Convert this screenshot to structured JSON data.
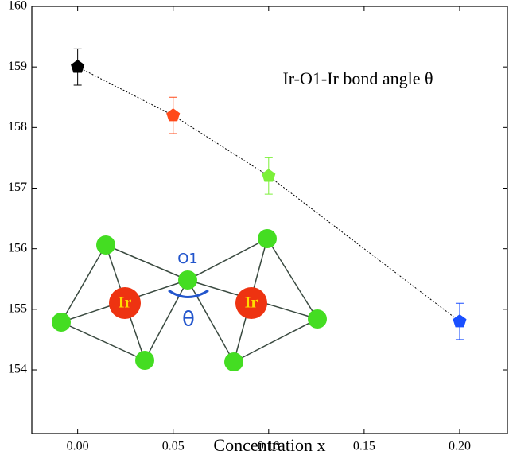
{
  "chart_data": {
    "type": "scatter",
    "annotation": "Ir-O1-Ir bond angle θ",
    "x_label": "Concentration x",
    "x": [
      0,
      0.05,
      0.1,
      0.2
    ],
    "values": [
      159,
      158.2,
      157.2,
      154.8
    ],
    "errors": [
      0.3,
      0.3,
      0.3,
      0.3
    ],
    "colors": [
      "#000000",
      "#ff4a1a",
      "#7cf03a",
      "#1a4fff"
    ],
    "xlim": [
      -0.024,
      0.225
    ],
    "xticks": [
      {
        "value": 0,
        "label": "0.00"
      },
      {
        "value": 0.05,
        "label": "0.05"
      },
      {
        "value": 0.1,
        "label": "0.10"
      },
      {
        "value": 0.15,
        "label": "0.15"
      },
      {
        "value": 0.2,
        "label": "0.20"
      }
    ],
    "ylim": [
      152.95,
      160
    ],
    "yticks": [
      154,
      155,
      156,
      157,
      158,
      159,
      160
    ],
    "inset": {
      "ir_left": "Ir",
      "ir_right": "Ir",
      "oxygen": "O1",
      "angle": "θ"
    }
  }
}
